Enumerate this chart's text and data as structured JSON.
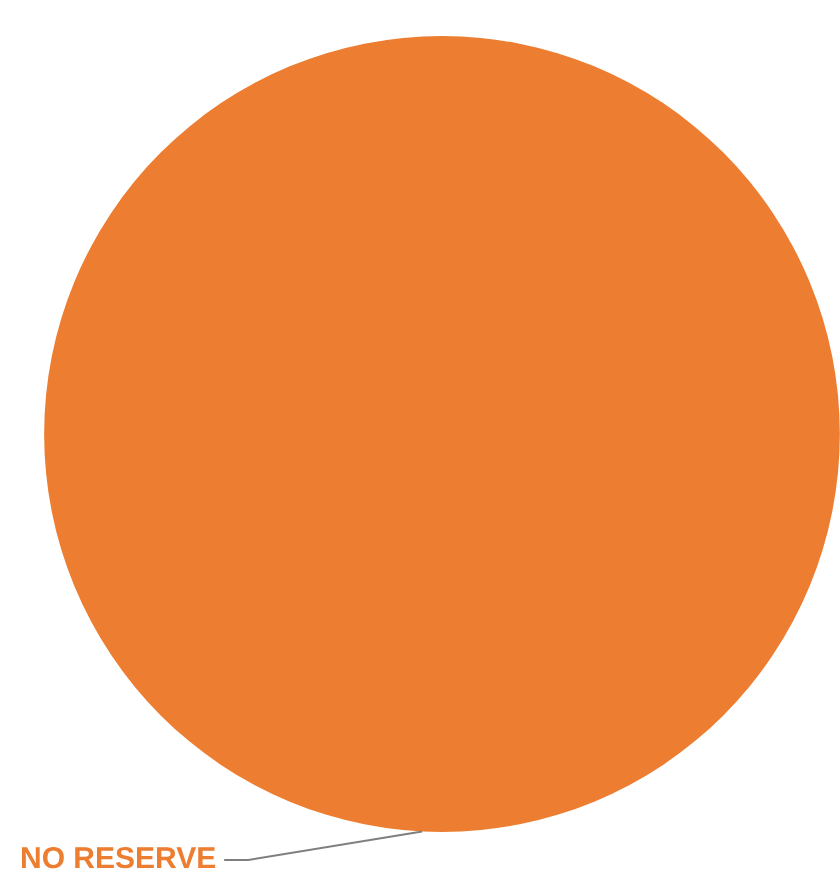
{
  "chart_data": {
    "type": "pie",
    "categories": [
      "NO RESERVE"
    ],
    "values": [
      100
    ],
    "colors": [
      "#ed7d31"
    ],
    "legend": false
  }
}
